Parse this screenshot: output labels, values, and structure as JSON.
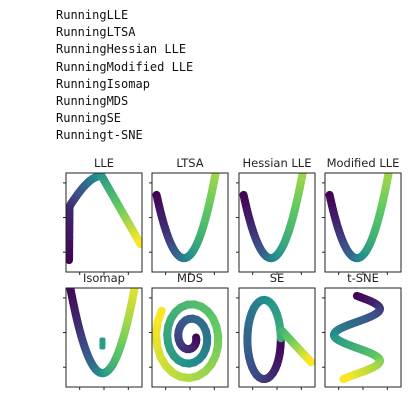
{
  "console": {
    "lines": [
      "RunningLLE",
      "RunningLTSA",
      "RunningHessian LLE",
      "RunningModified LLE",
      "RunningIsomap",
      "RunningMDS",
      "RunningSE",
      "Runningt-SNE"
    ]
  },
  "figure": {
    "colormap": [
      "#440154",
      "#3b528b",
      "#21918c",
      "#5ec962",
      "#fde725"
    ],
    "panels": [
      {
        "title": "LLE",
        "embedding": "inverted-parabola-shape"
      },
      {
        "title": "LTSA",
        "embedding": "parabola-shape"
      },
      {
        "title": "Hessian LLE",
        "embedding": "parabola-shape"
      },
      {
        "title": "Modified LLE",
        "embedding": "parabola-shape"
      },
      {
        "title": "Isomap",
        "embedding": "parabola-shape-with-dot"
      },
      {
        "title": "MDS",
        "embedding": "spiral-shape"
      },
      {
        "title": "SE",
        "embedding": "loop-shape"
      },
      {
        "title": "t-SNE",
        "embedding": "snake-shape"
      }
    ]
  }
}
